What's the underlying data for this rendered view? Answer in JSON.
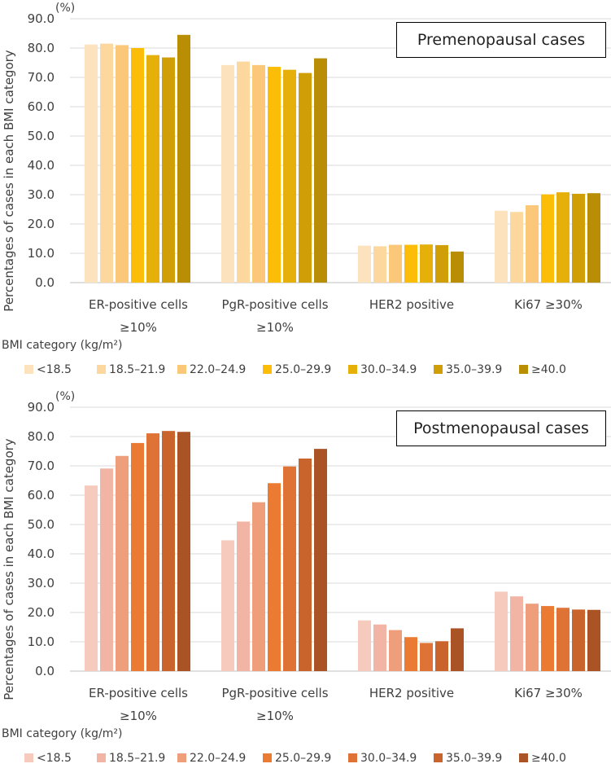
{
  "chart_data": [
    {
      "type": "bar",
      "title": "Premenopausal cases",
      "ylabel": "Percentages of cases in each BMI category",
      "unit": "(%)",
      "ylim": [
        0,
        90
      ],
      "yticks": [
        "0.0",
        "10.0",
        "20.0",
        "30.0",
        "40.0",
        "50.0",
        "60.0",
        "70.0",
        "80.0",
        "90.0"
      ],
      "categories": [
        {
          "line1": "ER-positive cells",
          "line2": "≥10%"
        },
        {
          "line1": "PgR-positive cells",
          "line2": "≥10%"
        },
        {
          "line1": "HER2 positive",
          "line2": ""
        },
        {
          "line1": "Ki67 ≥30%",
          "line2": ""
        }
      ],
      "legend_title": "BMI category (kg/m²)",
      "series": [
        {
          "name": "<18.5",
          "color": "#FDE2BE",
          "values": [
            81.2,
            74.2,
            12.6,
            24.5
          ]
        },
        {
          "name": "18.5–21.9",
          "color": "#FCD89E",
          "values": [
            81.5,
            75.4,
            12.4,
            24.1
          ]
        },
        {
          "name": "22.0–24.9",
          "color": "#FAC878",
          "values": [
            81.0,
            74.2,
            12.9,
            26.4
          ]
        },
        {
          "name": "25.0–29.9",
          "color": "#FBBD07",
          "values": [
            80.0,
            73.6,
            12.9,
            30.1
          ]
        },
        {
          "name": "30.0–34.9",
          "color": "#E5B00A",
          "values": [
            77.6,
            72.6,
            13.0,
            30.8
          ]
        },
        {
          "name": "35.0–39.9",
          "color": "#D09F08",
          "values": [
            76.8,
            71.5,
            12.8,
            30.3
          ]
        },
        {
          "name": "≥40.0",
          "color": "#B98E05",
          "values": [
            84.5,
            76.5,
            10.6,
            30.5
          ]
        }
      ]
    },
    {
      "type": "bar",
      "title": "Postmenopausal cases",
      "ylabel": "Percentages of cases in each BMI category",
      "unit": "(%)",
      "ylim": [
        0,
        90
      ],
      "yticks": [
        "0.0",
        "10.0",
        "20.0",
        "30.0",
        "40.0",
        "50.0",
        "60.0",
        "70.0",
        "80.0",
        "90.0"
      ],
      "categories": [
        {
          "line1": "ER-positive cells",
          "line2": "≥10%"
        },
        {
          "line1": "PgR-positive cells",
          "line2": "≥10%"
        },
        {
          "line1": "HER2 positive",
          "line2": ""
        },
        {
          "line1": "Ki67 ≥30%",
          "line2": ""
        }
      ],
      "legend_title": "BMI category (kg/m²)",
      "series": [
        {
          "name": "<18.5",
          "color": "#F6CBBE",
          "values": [
            63.3,
            44.6,
            17.3,
            27.1
          ]
        },
        {
          "name": "18.5–21.9",
          "color": "#F2B5A5",
          "values": [
            69.1,
            51.0,
            15.9,
            25.5
          ]
        },
        {
          "name": "22.0–24.9",
          "color": "#EE9E7B",
          "values": [
            73.4,
            57.6,
            14.0,
            23.0
          ]
        },
        {
          "name": "25.0–29.9",
          "color": "#EB7A33",
          "values": [
            77.8,
            64.1,
            11.6,
            22.2
          ]
        },
        {
          "name": "30.0–34.9",
          "color": "#DF7335",
          "values": [
            81.1,
            69.8,
            9.6,
            21.6
          ]
        },
        {
          "name": "35.0–39.9",
          "color": "#C8642C",
          "values": [
            81.9,
            72.5,
            10.2,
            21.0
          ]
        },
        {
          "name": "≥40.0",
          "color": "#AA5426",
          "values": [
            81.6,
            75.8,
            14.6,
            20.9
          ]
        }
      ]
    }
  ]
}
